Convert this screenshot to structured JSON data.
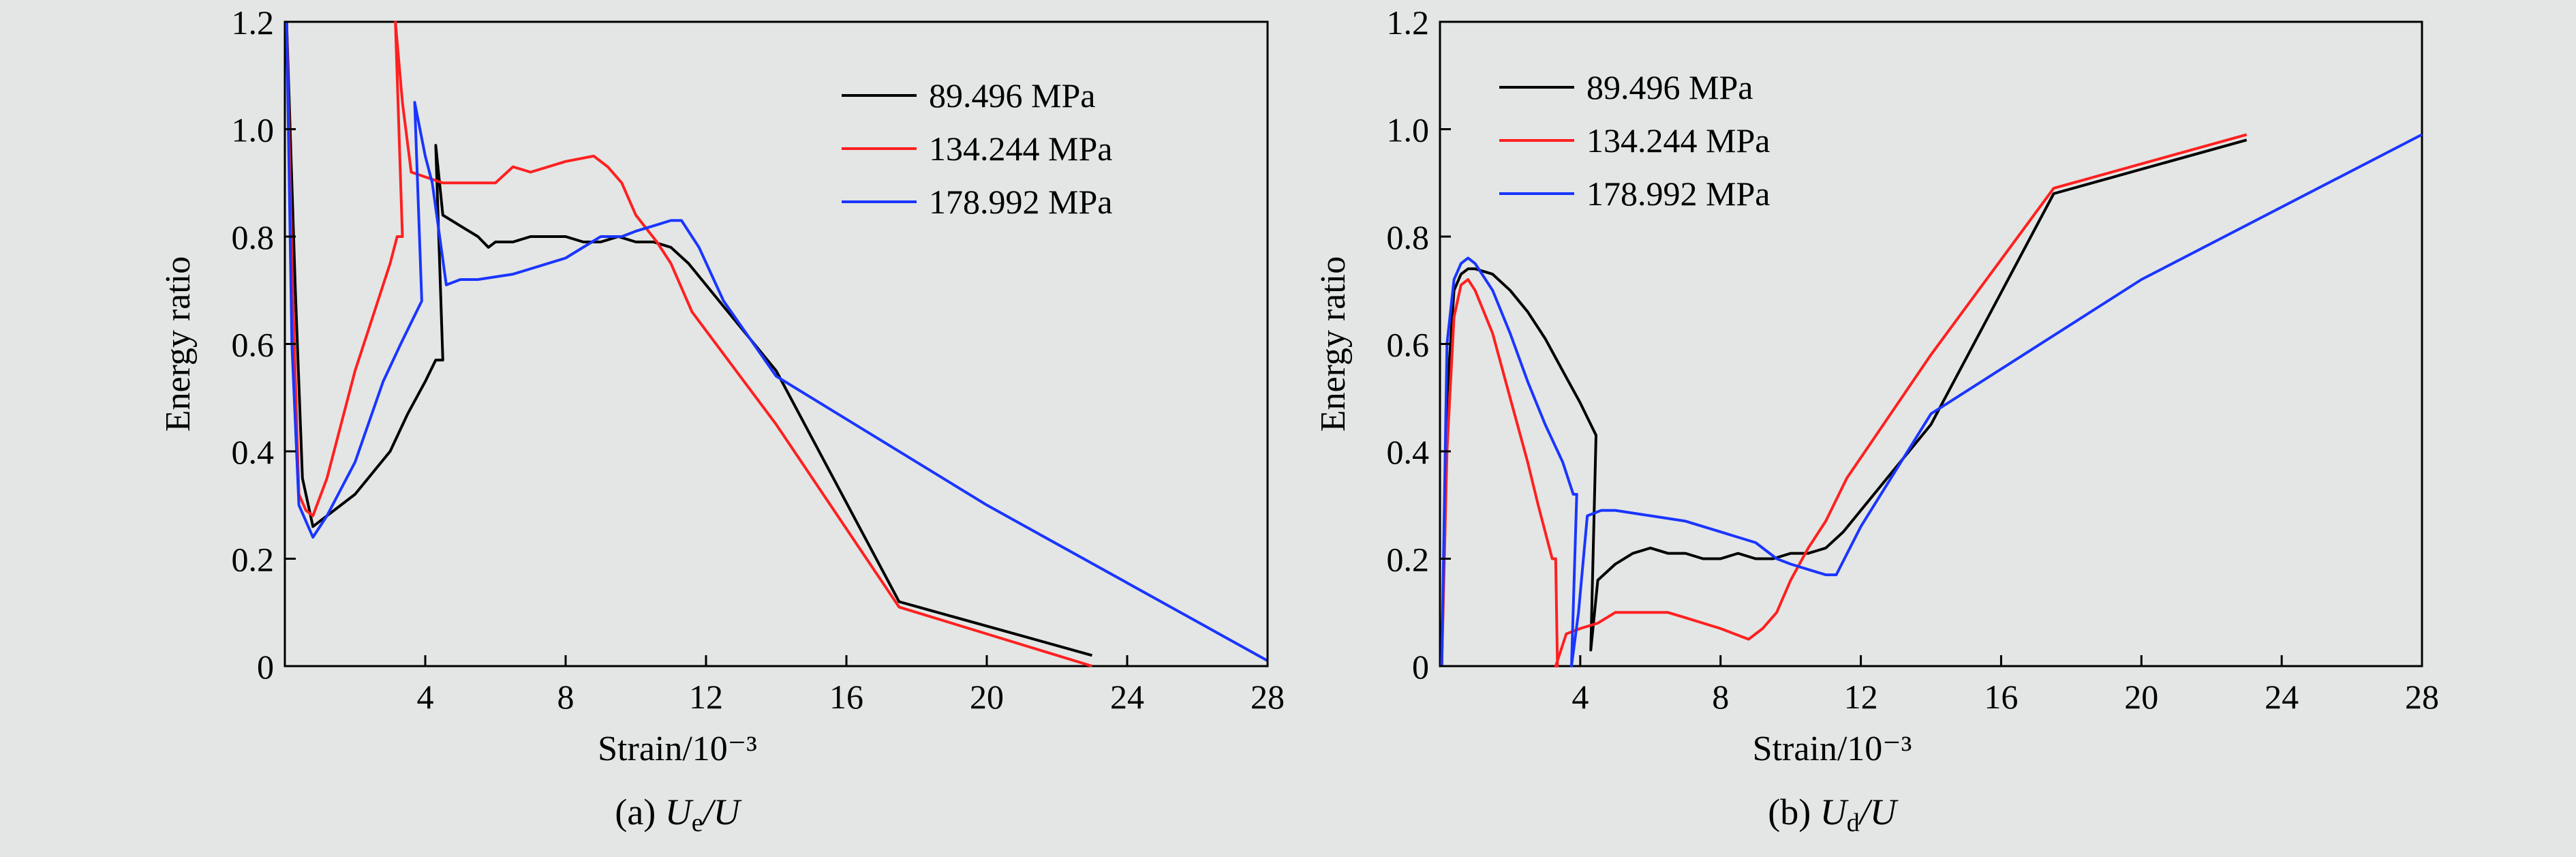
{
  "colors": {
    "background": "#e3e6e5",
    "series": [
      "#000000",
      "#ff2020",
      "#1a35ff"
    ]
  },
  "chart_data": [
    {
      "type": "line",
      "caption_prefix": "(a) ",
      "caption_var": "U",
      "caption_sub": "e",
      "caption_suffix": "/U",
      "xlabel": "Strain/10⁻³",
      "ylabel": "Energy ratio",
      "xlim": [
        0,
        28
      ],
      "ylim": [
        0,
        1.2
      ],
      "xticks": [
        4,
        8,
        12,
        16,
        20,
        24,
        28
      ],
      "yticks": [
        0,
        0.2,
        0.4,
        0.6,
        0.8,
        1.0,
        1.2
      ],
      "xtick_labels": [
        "4",
        "8",
        "12",
        "16",
        "20",
        "24",
        "28"
      ],
      "ytick_labels": [
        "0",
        "0.2",
        "0.4",
        "0.6",
        "0.8",
        "1.0",
        "1.2"
      ],
      "grid": false,
      "legend_position": "top-right",
      "series": [
        {
          "name": "89.496 MPa",
          "color": "#000000",
          "x": [
            0.05,
            0.3,
            0.5,
            0.8,
            1.2,
            2,
            3,
            3.5,
            4.0,
            4.3,
            4.5,
            4.3,
            4.5,
            5,
            5.5,
            5.8,
            6,
            6.5,
            7,
            8,
            8.5,
            9,
            9.5,
            10,
            10.5,
            11,
            11.5,
            12,
            14,
            17.5,
            23
          ],
          "y": [
            1.2,
            0.7,
            0.35,
            0.26,
            0.28,
            0.32,
            0.4,
            0.47,
            0.53,
            0.57,
            0.57,
            0.97,
            0.84,
            0.82,
            0.8,
            0.78,
            0.79,
            0.79,
            0.8,
            0.8,
            0.79,
            0.79,
            0.8,
            0.79,
            0.79,
            0.78,
            0.75,
            0.71,
            0.55,
            0.12,
            0.02
          ]
        },
        {
          "name": "134.244 MPa",
          "color": "#ff2020",
          "x": [
            0.05,
            0.2,
            0.4,
            0.6,
            0.8,
            1.2,
            2,
            2.5,
            3.0,
            3.2,
            3.35,
            3.15,
            3.35,
            3.6,
            4.5,
            6,
            6.5,
            7,
            8,
            8.8,
            9.2,
            9.6,
            10,
            10.6,
            11,
            11.6,
            14,
            17.5,
            23
          ],
          "y": [
            1.2,
            0.75,
            0.32,
            0.29,
            0.28,
            0.35,
            0.55,
            0.65,
            0.75,
            0.8,
            0.8,
            1.2,
            1.05,
            0.92,
            0.9,
            0.9,
            0.93,
            0.92,
            0.94,
            0.95,
            0.93,
            0.9,
            0.84,
            0.79,
            0.75,
            0.66,
            0.45,
            0.11,
            0.0
          ]
        },
        {
          "name": "178.992 MPa",
          "color": "#1a35ff",
          "x": [
            0.05,
            0.2,
            0.4,
            0.6,
            0.8,
            1.2,
            2,
            2.8,
            3.3,
            3.6,
            3.9,
            3.7,
            4.0,
            4.2,
            4.6,
            5,
            5.5,
            6.5,
            8,
            9,
            9.6,
            10,
            10.5,
            11,
            11.3,
            11.8,
            12.5,
            14,
            20,
            28
          ],
          "y": [
            1.2,
            0.6,
            0.3,
            0.27,
            0.24,
            0.28,
            0.38,
            0.53,
            0.6,
            0.64,
            0.68,
            1.05,
            0.95,
            0.9,
            0.71,
            0.72,
            0.72,
            0.73,
            0.76,
            0.8,
            0.8,
            0.81,
            0.82,
            0.83,
            0.83,
            0.78,
            0.68,
            0.54,
            0.3,
            0.01
          ]
        }
      ]
    },
    {
      "type": "line",
      "caption_prefix": "(b) ",
      "caption_var": "U",
      "caption_sub": "d",
      "caption_suffix": "/U",
      "xlabel": "Strain/10⁻³",
      "ylabel": "Energy ratio",
      "xlim": [
        0,
        28
      ],
      "ylim": [
        0,
        1.2
      ],
      "xticks": [
        4,
        8,
        12,
        16,
        20,
        24,
        28
      ],
      "yticks": [
        0,
        0.2,
        0.4,
        0.6,
        0.8,
        1.0,
        1.2
      ],
      "xtick_labels": [
        "4",
        "8",
        "12",
        "16",
        "20",
        "24",
        "28"
      ],
      "ytick_labels": [
        "0",
        "0.2",
        "0.4",
        "0.6",
        "0.8",
        "1.0",
        "1.2"
      ],
      "grid": false,
      "legend_position": "top-left",
      "series": [
        {
          "name": "89.496 MPa",
          "color": "#000000",
          "x": [
            0.05,
            0.2,
            0.4,
            0.6,
            0.8,
            1,
            1.5,
            2,
            2.5,
            3,
            3.5,
            4,
            4.3,
            4.45,
            4.3,
            4.5,
            5,
            5.5,
            6,
            6.5,
            7,
            7.5,
            8,
            8.5,
            9,
            9.5,
            10,
            10.5,
            11,
            11.5,
            14,
            17.5,
            23
          ],
          "y": [
            0.0,
            0.5,
            0.7,
            0.73,
            0.74,
            0.74,
            0.73,
            0.7,
            0.66,
            0.61,
            0.55,
            0.49,
            0.45,
            0.43,
            0.03,
            0.16,
            0.19,
            0.21,
            0.22,
            0.21,
            0.21,
            0.2,
            0.2,
            0.21,
            0.2,
            0.2,
            0.21,
            0.21,
            0.22,
            0.25,
            0.45,
            0.88,
            0.98
          ]
        },
        {
          "name": "134.244 MPa",
          "color": "#ff2020",
          "x": [
            0.05,
            0.2,
            0.4,
            0.6,
            0.8,
            1,
            1.5,
            2,
            2.5,
            2.8,
            3.0,
            3.2,
            3.3,
            3.35,
            3.3,
            3.4,
            3.6,
            4,
            4.5,
            5,
            6,
            6.5,
            7,
            8,
            8.8,
            9.2,
            9.6,
            10,
            10.5,
            11,
            11.6,
            14,
            17.5,
            23
          ],
          "y": [
            0.0,
            0.4,
            0.65,
            0.71,
            0.72,
            0.7,
            0.62,
            0.5,
            0.38,
            0.3,
            0.25,
            0.2,
            0.2,
            0.0,
            0.0,
            0.02,
            0.06,
            0.07,
            0.08,
            0.1,
            0.1,
            0.1,
            0.09,
            0.07,
            0.05,
            0.07,
            0.1,
            0.16,
            0.22,
            0.27,
            0.35,
            0.58,
            0.89,
            0.99
          ]
        },
        {
          "name": "178.992 MPa",
          "color": "#1a35ff",
          "x": [
            0.05,
            0.2,
            0.4,
            0.6,
            0.8,
            1,
            1.5,
            2,
            2.5,
            3,
            3.5,
            3.8,
            3.9,
            3.75,
            3.95,
            4.2,
            4.6,
            5,
            6,
            7,
            8,
            9,
            9.6,
            10,
            10.5,
            11,
            11.3,
            12,
            14,
            20,
            28
          ],
          "y": [
            0.0,
            0.6,
            0.72,
            0.75,
            0.76,
            0.75,
            0.7,
            0.62,
            0.53,
            0.45,
            0.38,
            0.32,
            0.32,
            0.0,
            0.1,
            0.28,
            0.29,
            0.29,
            0.28,
            0.27,
            0.25,
            0.23,
            0.2,
            0.19,
            0.18,
            0.17,
            0.17,
            0.26,
            0.47,
            0.72,
            0.99
          ]
        }
      ]
    }
  ]
}
